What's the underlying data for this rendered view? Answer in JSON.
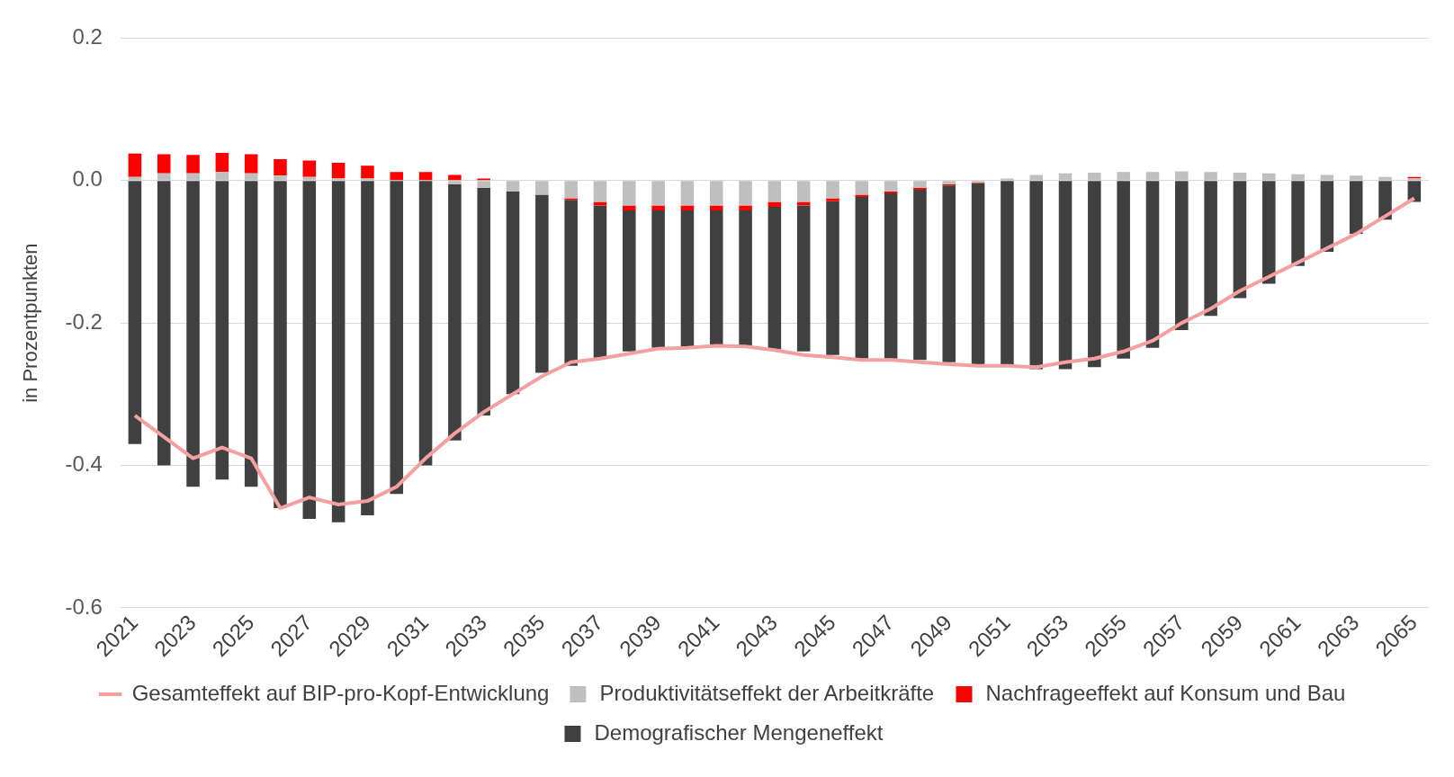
{
  "chart_data": {
    "type": "bar",
    "stacked": true,
    "ylabel": "in Prozentpunkten",
    "categories": [
      "2021",
      null,
      "2023",
      null,
      "2025",
      null,
      "2027",
      null,
      "2029",
      null,
      "2031",
      null,
      "2033",
      null,
      "2035",
      null,
      "2037",
      null,
      "2039",
      null,
      "2041",
      null,
      "2043",
      null,
      "2045",
      null,
      "2047",
      null,
      "2049",
      null,
      "2051",
      null,
      "2053",
      null,
      "2055",
      null,
      "2057",
      null,
      "2059",
      null,
      "2061",
      null,
      "2063",
      null,
      "2065"
    ],
    "series": [
      {
        "name": "Produktivitätseffekt der Arbeitkräfte",
        "color": "#bfbfbf",
        "values": [
          0.005,
          0.01,
          0.01,
          0.012,
          0.01,
          0.007,
          0.005,
          0.003,
          0.003,
          null,
          null,
          -0.005,
          -0.01,
          -0.015,
          -0.02,
          -0.025,
          -0.03,
          -0.035,
          -0.035,
          -0.035,
          -0.035,
          -0.035,
          -0.03,
          -0.03,
          -0.025,
          -0.02,
          -0.015,
          -0.01,
          -0.005,
          -0.003,
          0.003,
          0.008,
          0.01,
          0.011,
          0.012,
          0.012,
          0.013,
          0.012,
          0.011,
          0.01,
          0.009,
          0.008,
          0.007,
          0.005,
          0.003
        ]
      },
      {
        "name": "Nachfrageeffekt auf Konsum und Bau",
        "color": "#ff0000",
        "values": [
          0.033,
          0.027,
          0.026,
          0.027,
          0.027,
          0.023,
          0.023,
          0.022,
          0.018,
          0.012,
          0.012,
          0.008,
          0.003,
          null,
          null,
          -0.002,
          -0.005,
          -0.007,
          -0.007,
          -0.007,
          -0.007,
          -0.007,
          -0.007,
          -0.005,
          -0.004,
          -0.003,
          -0.003,
          -0.003,
          -0.002,
          -0.001,
          0,
          0,
          0,
          0,
          0,
          0,
          0,
          0,
          0,
          0,
          0,
          0,
          0,
          0,
          0.002
        ]
      },
      {
        "name": "Demografischer Mengeneffekt",
        "color": "#404040",
        "values": [
          -0.37,
          -0.4,
          -0.43,
          -0.42,
          -0.43,
          -0.46,
          -0.475,
          -0.48,
          -0.47,
          -0.44,
          -0.4,
          -0.36,
          -0.32,
          -0.285,
          -0.25,
          -0.233,
          -0.215,
          -0.198,
          -0.193,
          -0.193,
          -0.188,
          -0.19,
          -0.2,
          -0.205,
          -0.216,
          -0.227,
          -0.232,
          -0.239,
          -0.248,
          -0.254,
          -0.26,
          -0.265,
          -0.265,
          -0.262,
          -0.25,
          -0.235,
          -0.21,
          -0.19,
          -0.165,
          -0.145,
          -0.12,
          -0.1,
          -0.075,
          -0.055,
          -0.03
        ]
      },
      {
        "name": "Gesamteffekt auf BIP-pro-Kopf-Entwicklung",
        "type": "line",
        "color": "#f4a0a0",
        "values": [
          -0.33,
          -0.36,
          -0.39,
          -0.375,
          -0.39,
          -0.46,
          -0.445,
          -0.455,
          -0.45,
          -0.43,
          -0.39,
          -0.355,
          -0.325,
          -0.3,
          -0.275,
          -0.255,
          -0.25,
          -0.243,
          -0.236,
          -0.235,
          -0.232,
          -0.233,
          -0.238,
          -0.245,
          -0.248,
          -0.252,
          -0.252,
          -0.255,
          -0.258,
          -0.26,
          -0.26,
          -0.262,
          -0.255,
          -0.25,
          -0.24,
          -0.225,
          -0.2,
          -0.18,
          -0.155,
          -0.135,
          -0.115,
          -0.095,
          -0.075,
          -0.05,
          -0.025
        ]
      }
    ],
    "ylim": [
      -0.6,
      0.2
    ],
    "yticks": [
      {
        "value": 0.2,
        "label": "0.2"
      },
      {
        "value": 0,
        "label": "0.0"
      },
      {
        "value": -0.2,
        "label": "-0.2"
      },
      {
        "value": -0.4,
        "label": "-0.4"
      },
      {
        "value": -0.6,
        "label": "-0.6"
      }
    ],
    "grid": "y",
    "legend": "bottom"
  }
}
